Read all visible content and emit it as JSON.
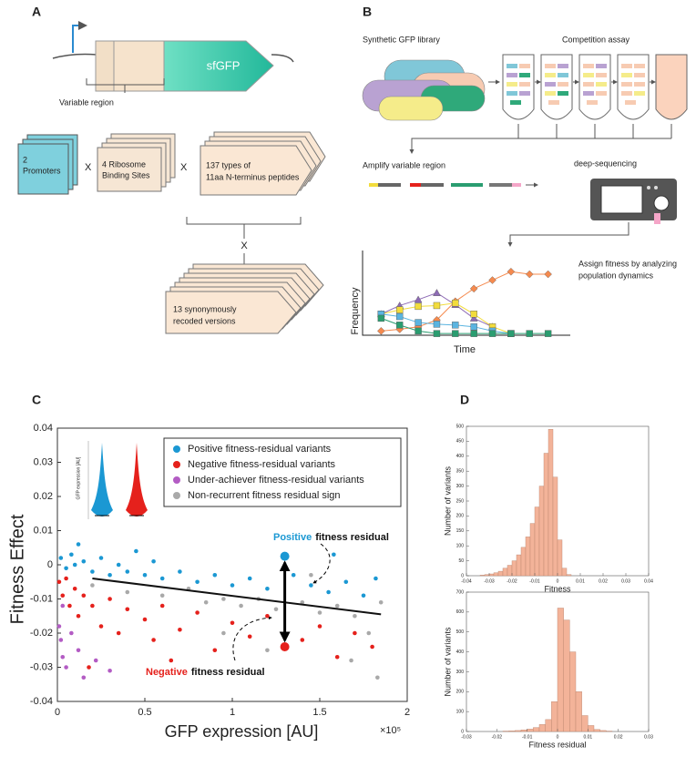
{
  "panel_a": {
    "label": "A",
    "gene": "sfGFP",
    "variable_region": "Variable region",
    "promoters": [
      "2",
      "Promoters"
    ],
    "rbs": [
      "4 Ribosome",
      "Binding Sites"
    ],
    "peptides": [
      "137 types of",
      "11aa N-terminus peptides"
    ],
    "recoded": [
      "13 synonymously",
      "recoded versions"
    ],
    "times": [
      "X",
      "X",
      "X"
    ]
  },
  "panel_b": {
    "label": "B",
    "library": "Synthetic GFP library",
    "competition": "Competition assay",
    "amplify": "Amplify variable region",
    "sequencing": "deep-sequencing",
    "assign": [
      "Assign fitness by analyzing",
      "population dynamics"
    ]
  },
  "panel_c": {
    "label": "C"
  },
  "panel_d": {
    "label": "D"
  },
  "chart_data": [
    {
      "type": "line",
      "x_label": "Time",
      "y_label": "Frequency",
      "x": [
        1,
        2,
        3,
        4,
        5,
        6,
        7,
        8,
        9,
        10
      ],
      "xlim": [
        0,
        11
      ],
      "ylim": [
        0,
        1
      ],
      "series": [
        {
          "color": "#f58a4e",
          "marker": "diamond",
          "values": [
            0.05,
            0.07,
            0.1,
            0.18,
            0.4,
            0.55,
            0.65,
            0.75,
            0.72,
            0.72
          ]
        },
        {
          "color": "#8e6bb5",
          "marker": "triangle",
          "values": [
            0.25,
            0.35,
            0.42,
            0.5,
            0.36,
            0.2,
            0.1,
            null,
            null,
            null
          ]
        },
        {
          "color": "#f2dc3c",
          "marker": "square",
          "values": [
            0.25,
            0.3,
            0.34,
            0.35,
            0.38,
            0.25,
            0.1,
            0.02,
            null,
            null
          ]
        },
        {
          "color": "#5ab4e0",
          "marker": "square",
          "values": [
            0.25,
            0.22,
            0.15,
            0.13,
            0.12,
            0.1,
            0.05,
            0.02,
            null,
            null
          ]
        },
        {
          "color": "#2a9d70",
          "marker": "square",
          "values": [
            0.2,
            0.12,
            0.05,
            0.02,
            0.02,
            0.02,
            0.02,
            0.02,
            0.02,
            0.02
          ]
        }
      ]
    },
    {
      "type": "scatter",
      "x_label": "GFP expression [AU]",
      "y_label": "Fitness Effect",
      "x_scale_label": "×10⁵",
      "inset_y_label": "GFP expression [AU]",
      "xlim": [
        0,
        2
      ],
      "ylim": [
        -0.04,
        0.04
      ],
      "xticks": [
        0,
        0.5,
        1,
        1.5,
        2
      ],
      "yticks": [
        -0.04,
        -0.03,
        -0.02,
        -0.01,
        0,
        0.01,
        0.02,
        0.03,
        0.04
      ],
      "series": [
        {
          "name": "Positive fitness-residual variants",
          "color": "#1b98d3",
          "x": [
            0.02,
            0.05,
            0.08,
            0.1,
            0.15,
            0.2,
            0.25,
            0.3,
            0.35,
            0.4,
            0.5,
            0.55,
            0.6,
            0.7,
            0.8,
            0.9,
            1.0,
            1.1,
            1.2,
            1.35,
            1.45,
            1.55,
            1.65,
            1.75,
            1.82,
            0.12,
            0.45,
            1.58
          ],
          "values": [
            0.002,
            -0.001,
            0.003,
            0.0,
            0.001,
            -0.002,
            0.002,
            -0.003,
            0.0,
            -0.002,
            -0.003,
            0.001,
            -0.004,
            -0.002,
            -0.005,
            -0.003,
            -0.006,
            -0.004,
            -0.007,
            -0.003,
            -0.006,
            -0.008,
            -0.005,
            -0.009,
            -0.004,
            0.006,
            0.004,
            0.003
          ]
        },
        {
          "name": "Negative fitness-residual variants",
          "color": "#e5211c",
          "x": [
            0.01,
            0.03,
            0.05,
            0.07,
            0.1,
            0.12,
            0.15,
            0.2,
            0.25,
            0.3,
            0.35,
            0.4,
            0.5,
            0.55,
            0.6,
            0.7,
            0.8,
            0.9,
            1.0,
            1.1,
            1.2,
            1.4,
            1.5,
            1.6,
            1.7,
            1.8,
            0.18,
            0.65
          ],
          "values": [
            -0.005,
            -0.009,
            -0.004,
            -0.012,
            -0.007,
            -0.015,
            -0.009,
            -0.012,
            -0.018,
            -0.01,
            -0.02,
            -0.013,
            -0.016,
            -0.022,
            -0.012,
            -0.019,
            -0.014,
            -0.025,
            -0.017,
            -0.021,
            -0.015,
            -0.022,
            -0.018,
            -0.027,
            -0.02,
            -0.024,
            -0.03,
            -0.028
          ]
        },
        {
          "name": "Under-achiever fitness-residual variants",
          "color": "#b35cc4",
          "x": [
            0.01,
            0.02,
            0.03,
            0.05,
            0.08,
            0.12,
            0.15,
            0.22,
            0.3,
            0.03
          ],
          "values": [
            -0.018,
            -0.022,
            -0.027,
            -0.03,
            -0.02,
            -0.025,
            -0.033,
            -0.028,
            -0.031,
            -0.012
          ]
        },
        {
          "name": "Non-recurrent fitness residual sign",
          "color": "#a9a9a9",
          "x": [
            0.2,
            0.4,
            0.6,
            0.75,
            0.85,
            0.95,
            1.05,
            1.15,
            1.25,
            1.4,
            1.5,
            1.6,
            1.7,
            1.78,
            1.85,
            1.2,
            1.68,
            1.83,
            0.95,
            1.45
          ],
          "values": [
            -0.006,
            -0.008,
            -0.009,
            -0.007,
            -0.011,
            -0.01,
            -0.012,
            -0.01,
            -0.013,
            -0.011,
            -0.014,
            -0.012,
            -0.015,
            -0.02,
            -0.011,
            -0.025,
            -0.028,
            -0.033,
            -0.02,
            -0.003
          ]
        }
      ],
      "fit": {
        "x": [
          0.2,
          1.85
        ],
        "values": [
          -0.004,
          -0.0145
        ]
      },
      "highlights": [
        {
          "x": 1.3,
          "value": 0.0025,
          "color": "#1b98d3"
        },
        {
          "x": 1.3,
          "value": -0.024,
          "color": "#e5211c"
        }
      ],
      "annotations": [
        {
          "emphasis": "Positive",
          "text": "fitness residual",
          "color": "#1b98d3"
        },
        {
          "emphasis": "Negative",
          "text": "fitness residual",
          "color": "#e5211c"
        }
      ]
    },
    {
      "type": "histogram",
      "x_label": "Fitness",
      "y_label": "Number of variants",
      "color": "#f3b399",
      "bins": [
        -0.034,
        -0.032,
        -0.03,
        -0.028,
        -0.026,
        -0.024,
        -0.022,
        -0.02,
        -0.018,
        -0.016,
        -0.014,
        -0.012,
        -0.01,
        -0.008,
        -0.006,
        -0.004,
        -0.002,
        0,
        0.002,
        0.004,
        0.006
      ],
      "values": [
        2,
        4,
        6,
        10,
        15,
        25,
        35,
        50,
        70,
        95,
        130,
        175,
        230,
        300,
        410,
        490,
        330,
        120,
        25,
        4
      ],
      "xlim": [
        -0.04,
        0.04
      ],
      "ylim": [
        0,
        500
      ],
      "xticks": [
        -0.04,
        -0.03,
        -0.02,
        -0.01,
        0,
        0.01,
        0.02,
        0.03,
        0.04
      ],
      "yticks": [
        0,
        50,
        100,
        150,
        200,
        250,
        300,
        350,
        400,
        450,
        500
      ]
    },
    {
      "type": "histogram",
      "x_label": "Fitness residual",
      "y_label": "Number of variants",
      "color": "#f3b399",
      "bins": [
        -0.018,
        -0.016,
        -0.014,
        -0.012,
        -0.01,
        -0.008,
        -0.006,
        -0.004,
        -0.002,
        0,
        0.002,
        0.004,
        0.006,
        0.008,
        0.01,
        0.012,
        0.014,
        0.016,
        0.018
      ],
      "values": [
        2,
        3,
        5,
        8,
        12,
        20,
        35,
        60,
        150,
        620,
        560,
        400,
        200,
        80,
        30,
        10,
        5,
        2
      ],
      "xlim": [
        -0.03,
        0.03
      ],
      "ylim": [
        0,
        700
      ],
      "xticks": [
        -0.03,
        -0.02,
        -0.01,
        0,
        0.01,
        0.02,
        0.03
      ],
      "yticks": [
        0,
        100,
        200,
        300,
        400,
        500,
        600,
        700
      ]
    }
  ]
}
